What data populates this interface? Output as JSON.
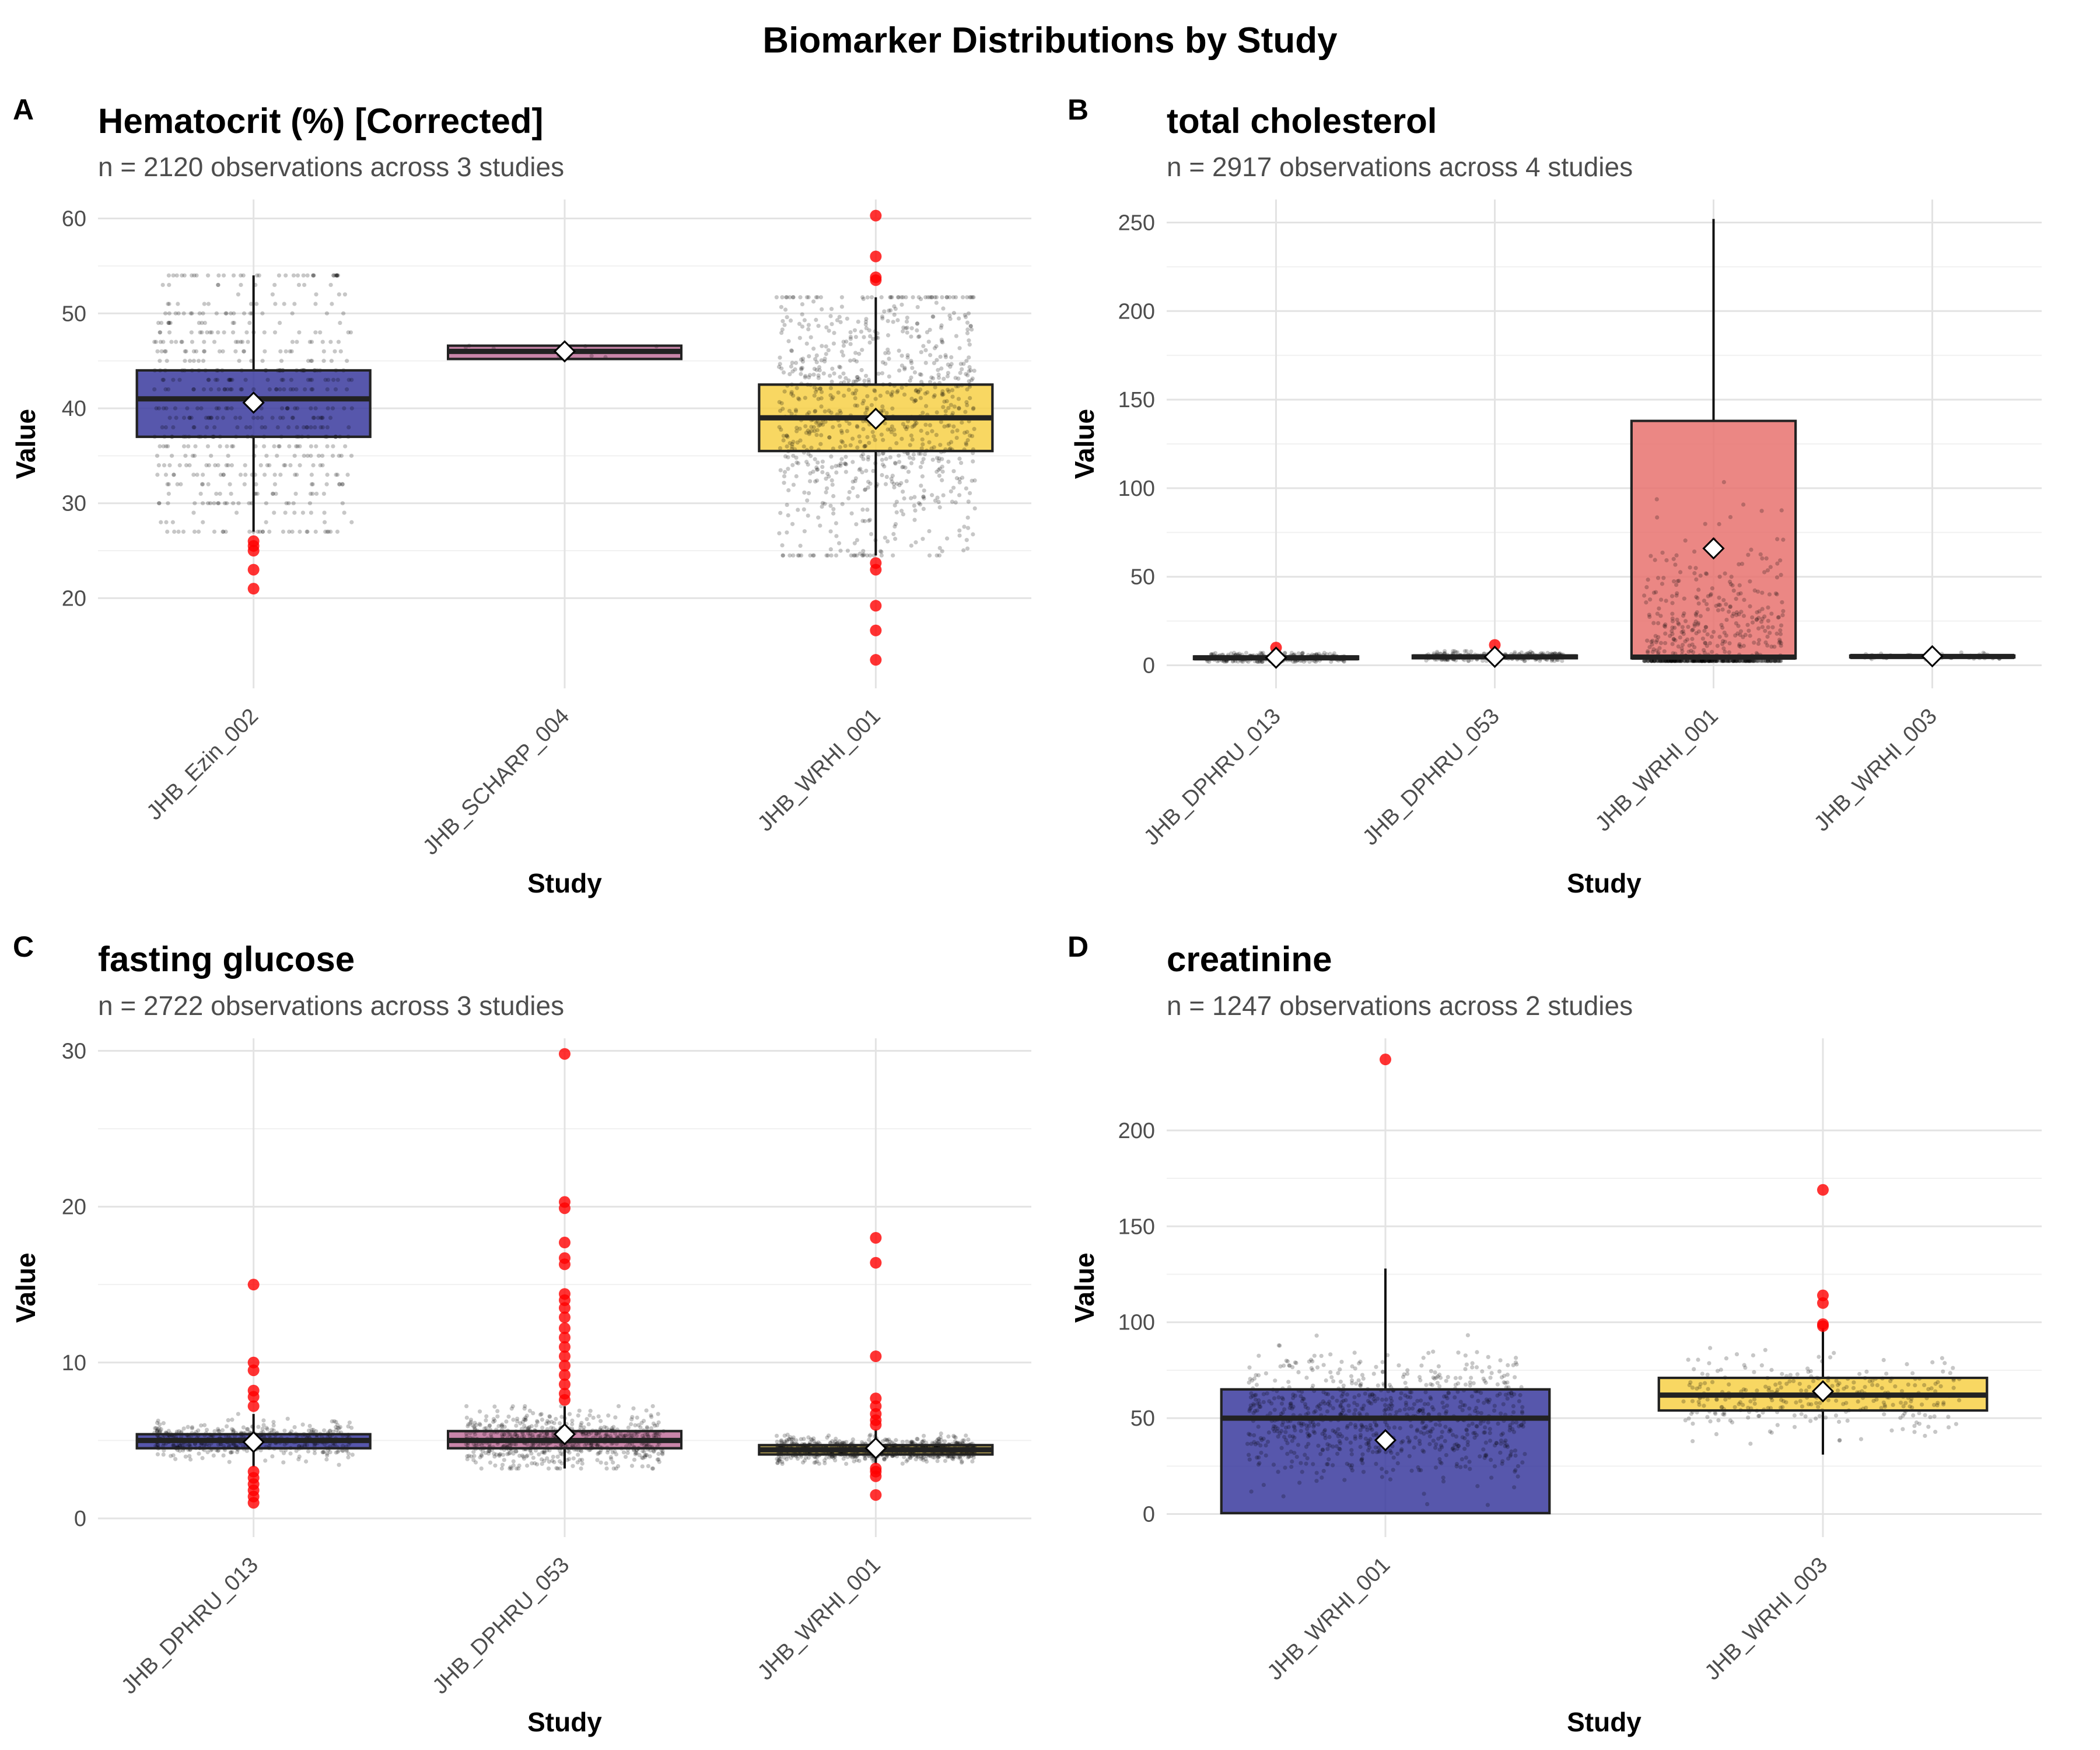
{
  "title": "Biomarker Distributions by Study",
  "chart_data": [
    {
      "type": "box",
      "tag": "A",
      "title": "Hematocrit (%) [Corrected]",
      "subtitle": "n = 2120 observations across 3 studies",
      "xlabel": "Study",
      "ylabel": "Value",
      "ylim": [
        10.5,
        62
      ],
      "yticks": [
        20,
        30,
        40,
        50,
        60
      ],
      "categories": [
        "JHB_Ezin_002",
        "JHB_SCHARP_004",
        "JHB_WRHI_001"
      ],
      "boxes": [
        {
          "color": "#3a3a9e",
          "q1": 37,
          "median": 41,
          "q3": 44,
          "low": 27,
          "high": 54,
          "mean": 40.6,
          "outliers": [
            26,
            25.5,
            25,
            23,
            21
          ],
          "spread": 11,
          "jitter_n": 600,
          "gridded": true
        },
        {
          "color": "#c0709a",
          "q1": 45.2,
          "median": 46,
          "q3": 46.6,
          "low": 45.2,
          "high": 46.6,
          "mean": 46,
          "outliers": [],
          "spread": 0.8,
          "jitter_n": 8,
          "gridded": false
        },
        {
          "color": "#f7d046",
          "q1": 35.5,
          "median": 39,
          "q3": 42.5,
          "low": 24.5,
          "high": 51.7,
          "mean": 38.9,
          "outliers": [
            60.3,
            56,
            53.8,
            53.5,
            23.7,
            23,
            19.2,
            16.6,
            13.5
          ],
          "spread": 11,
          "jitter_n": 900,
          "gridded": false
        }
      ]
    },
    {
      "type": "box",
      "tag": "B",
      "title": "total cholesterol",
      "subtitle": "n = 2917 observations across 4 studies",
      "xlabel": "Study",
      "ylabel": "Value",
      "ylim": [
        -13,
        263
      ],
      "yticks": [
        0,
        50,
        100,
        150,
        200,
        250
      ],
      "categories": [
        "JHB_DPHRU_013",
        "JHB_DPHRU_053",
        "JHB_WRHI_001",
        "JHB_WRHI_003"
      ],
      "boxes": [
        {
          "color": "#3a3a9e",
          "q1": 3.5,
          "median": 4.2,
          "q3": 5,
          "low": 2,
          "high": 7,
          "mean": 4.3,
          "outliers": [
            10
          ],
          "spread": 2,
          "jitter_n": 300,
          "gridded": false
        },
        {
          "color": "#c0709a",
          "q1": 4,
          "median": 4.8,
          "q3": 5.5,
          "low": 2.5,
          "high": 8,
          "mean": 4.8,
          "outliers": [
            11.5
          ],
          "spread": 2,
          "jitter_n": 250,
          "gridded": false
        },
        {
          "color": "#e8726f",
          "q1": 4,
          "median": 4.6,
          "q3": 138,
          "low": 2.5,
          "high": 252,
          "mean": 66,
          "outliers": [],
          "spread": 45,
          "jitter_n": 600,
          "gridded": false
        },
        {
          "color": "#f7d046",
          "q1": 4.5,
          "median": 5,
          "q3": 5.5,
          "low": 3,
          "high": 7.5,
          "mean": 5.1,
          "outliers": [],
          "spread": 1.2,
          "jitter_n": 80,
          "gridded": false
        }
      ]
    },
    {
      "type": "box",
      "tag": "C",
      "title": "fasting glucose",
      "subtitle": "n = 2722 observations across 3 studies",
      "xlabel": "Study",
      "ylabel": "Value",
      "ylim": [
        -1.2,
        30.8
      ],
      "yticks": [
        0,
        10,
        20,
        30
      ],
      "categories": [
        "JHB_DPHRU_013",
        "JHB_DPHRU_053",
        "JHB_WRHI_001"
      ],
      "boxes": [
        {
          "color": "#3a3a9e",
          "q1": 4.5,
          "median": 5,
          "q3": 5.4,
          "low": 3.3,
          "high": 6.7,
          "mean": 4.9,
          "outliers": [
            15,
            10,
            9.5,
            8.2,
            7.8,
            7.2,
            3.0,
            2.6,
            2.2,
            1.8,
            1.4,
            1.0
          ],
          "spread": 0.8,
          "jitter_n": 450,
          "gridded": false
        },
        {
          "color": "#c0709a",
          "q1": 4.5,
          "median": 5,
          "q3": 5.6,
          "low": 3.2,
          "high": 7.2,
          "mean": 5.4,
          "outliers": [
            29.8,
            20.3,
            19.9,
            17.7,
            16.7,
            16.3,
            14.4,
            14.0,
            13.5,
            12.9,
            12.2,
            11.6,
            11.0,
            10.4,
            9.8,
            9.2,
            8.6,
            8.0,
            7.6
          ],
          "spread": 1.3,
          "jitter_n": 650,
          "gridded": false
        },
        {
          "color": "#b9a03a",
          "q1": 4.1,
          "median": 4.4,
          "q3": 4.7,
          "low": 3.5,
          "high": 5.7,
          "mean": 4.5,
          "outliers": [
            18,
            16.4,
            10.4,
            7.7,
            7.2,
            6.7,
            6.3,
            6.0,
            3.2,
            3.0,
            2.7,
            1.5
          ],
          "spread": 0.5,
          "jitter_n": 900,
          "gridded": false
        }
      ]
    },
    {
      "type": "box",
      "tag": "D",
      "title": "creatinine",
      "subtitle": "n = 1247 observations across 2 studies",
      "xlabel": "Study",
      "ylabel": "Value",
      "ylim": [
        -12,
        248
      ],
      "yticks": [
        0,
        50,
        100,
        150,
        200
      ],
      "categories": [
        "JHB_WRHI_001",
        "JHB_WRHI_003"
      ],
      "boxes": [
        {
          "color": "#3a3a9e",
          "q1": 0.5,
          "median": 50,
          "q3": 65,
          "low": 0.5,
          "high": 128,
          "mean": 38.5,
          "outliers": [
            237
          ],
          "spread": 22,
          "jitter_n": 800,
          "gridded": false
        },
        {
          "color": "#f7d046",
          "q1": 54,
          "median": 62,
          "q3": 71,
          "low": 31,
          "high": 97,
          "mean": 64,
          "outliers": [
            169,
            114,
            110,
            99,
            98
          ],
          "spread": 14,
          "jitter_n": 300,
          "gridded": false
        }
      ]
    }
  ]
}
